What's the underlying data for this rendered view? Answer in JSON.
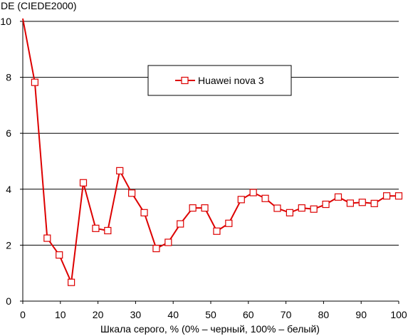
{
  "chart_data": {
    "type": "line",
    "ylabel": "DE (CIEDE2000)",
    "xlabel": "Шкала серого, % (0% – черный, 100% – белый)",
    "xlim": [
      0,
      100
    ],
    "ylim": [
      0,
      10
    ],
    "xticks": [
      0,
      10,
      20,
      30,
      40,
      50,
      60,
      70,
      80,
      90,
      100
    ],
    "yticks": [
      0,
      2,
      4,
      6,
      8,
      10
    ],
    "grid": "horizontal",
    "legend_position": "top-center",
    "colors": {
      "series": "#dd0000",
      "grid": "#000000",
      "marker_fill": "#ffffff"
    },
    "series": [
      {
        "name": "Huawei nova 3",
        "marker": "square",
        "x": [
          0,
          3.2,
          6.5,
          9.7,
          12.9,
          16.1,
          19.4,
          22.6,
          25.8,
          29.0,
          32.3,
          35.5,
          38.7,
          41.9,
          45.2,
          48.4,
          51.6,
          54.8,
          58.1,
          61.3,
          64.5,
          67.7,
          71.0,
          74.2,
          77.4,
          80.6,
          83.9,
          87.1,
          90.3,
          93.5,
          96.8,
          100
        ],
        "values": [
          10.1,
          7.82,
          2.25,
          1.65,
          0.67,
          4.23,
          2.6,
          2.52,
          4.66,
          3.86,
          3.16,
          1.88,
          2.1,
          2.76,
          3.33,
          3.33,
          2.5,
          2.78,
          3.63,
          3.88,
          3.67,
          3.32,
          3.16,
          3.33,
          3.29,
          3.46,
          3.72,
          3.5,
          3.53,
          3.49,
          3.76,
          3.76
        ]
      }
    ]
  }
}
